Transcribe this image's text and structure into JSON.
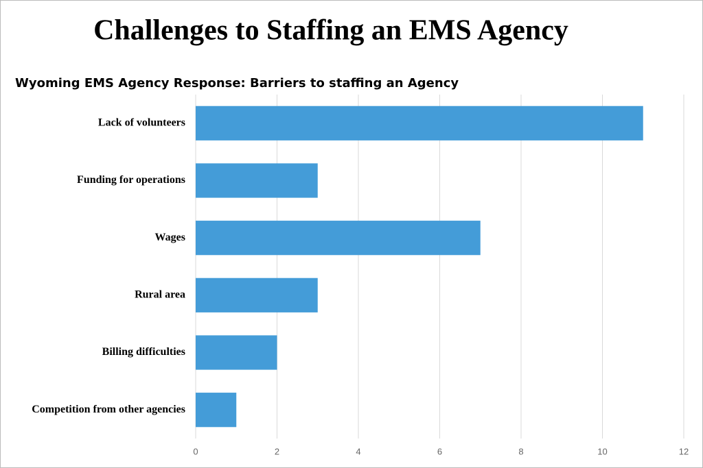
{
  "chart_data": {
    "type": "bar",
    "orientation": "horizontal",
    "title": "Challenges to Staffing an EMS Agency",
    "subtitle": "Wyoming EMS Agency Response: Barriers to staffing an Agency",
    "categories": [
      "Lack of volunteers",
      "Funding for operations",
      "Wages",
      "Rural area",
      "Billing difficulties",
      "Competition from other agencies"
    ],
    "values": [
      11,
      3,
      7,
      3,
      2,
      1
    ],
    "color": "#449cd8",
    "xlim": [
      0,
      12
    ],
    "xticks": [
      0,
      2,
      4,
      6,
      8,
      10,
      12
    ],
    "grid": true
  }
}
